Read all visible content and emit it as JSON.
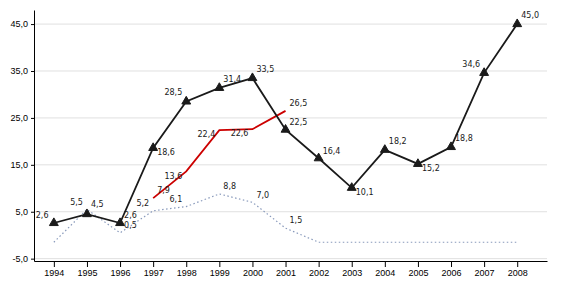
{
  "chart_data": {
    "type": "line",
    "xlim": [
      1993.4,
      2008.9
    ],
    "xticks": [
      1994,
      1995,
      1996,
      1997,
      1998,
      1999,
      2000,
      2001,
      2002,
      2003,
      2004,
      2005,
      2006,
      2007,
      2008
    ],
    "ylim": [
      -5.5,
      48
    ],
    "yticks": [
      {
        "value": -5,
        "label": "-5,0"
      },
      {
        "value": 5,
        "label": "5,0"
      },
      {
        "value": 15,
        "label": "15,0"
      },
      {
        "value": 25,
        "label": "25,0"
      },
      {
        "value": 35,
        "label": "35,0"
      },
      {
        "value": 45,
        "label": "45,0"
      }
    ],
    "grid": true,
    "data_labels": true,
    "series": [
      {
        "color": "#1a1a1a",
        "marker": "triangle",
        "x": [
          1994,
          1995,
          1996,
          1997,
          1998,
          1999,
          2000,
          2001,
          2002,
          2003,
          2004,
          2005,
          2006,
          2007,
          2008
        ],
        "values": [
          2.6,
          4.5,
          2.6,
          18.6,
          28.5,
          31.4,
          33.5,
          22.5,
          16.4,
          10.1,
          18.2,
          15.2,
          18.8,
          34.6,
          45.0
        ],
        "value_labels": [
          "2,6",
          "4,5",
          "2,6",
          "18,6",
          "28,5",
          "31,4",
          "33,5",
          "22,5",
          "16,4",
          "10,1",
          "18,2",
          "15,2",
          "18,8",
          "34,6",
          "45,0"
        ]
      },
      {
        "color": "#cc0000",
        "x": [
          1997,
          1998,
          1999,
          2000,
          2001
        ],
        "values": [
          7.9,
          13.6,
          22.4,
          22.6,
          26.5
        ],
        "value_labels": [
          "7,9",
          "13,6",
          "22,4",
          "22,6",
          "26,5"
        ]
      },
      {
        "color": "#8899bb",
        "line_style": "dotted",
        "x": [
          1994,
          1995,
          1996,
          1997,
          1998,
          1999,
          2000,
          2001,
          2002,
          2003,
          2004,
          2005,
          2006,
          2007,
          2008
        ],
        "values": [
          -1.5,
          5.5,
          0.5,
          5.2,
          6.1,
          8.8,
          7.0,
          1.5,
          -1.5,
          -1.5,
          -1.5,
          -1.5,
          -1.5,
          -1.5,
          -1.5
        ],
        "value_labels": [
          null,
          "5,5",
          "0,5",
          "5,2",
          "6,1",
          "8,8",
          "7,0",
          "1,5",
          null,
          null,
          null,
          null,
          null,
          null,
          null
        ]
      }
    ]
  }
}
